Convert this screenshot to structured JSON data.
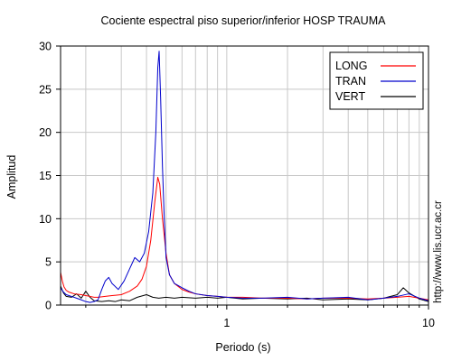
{
  "chart_data": {
    "type": "line",
    "title": "Cociente espectral piso superior/inferior  HOSP TRAUMA",
    "xlabel": "Periodo (s)",
    "ylabel": "Amplitud",
    "xscale": "log",
    "xlim": [
      0.15,
      10
    ],
    "ylim": [
      0,
      30
    ],
    "grid": true,
    "legend_position": "top-right",
    "x_ticks": [
      {
        "value": 1,
        "label": "1"
      },
      {
        "value": 10,
        "label": "10"
      }
    ],
    "y_ticks": [
      {
        "value": 0,
        "label": "0"
      },
      {
        "value": 5,
        "label": "5"
      },
      {
        "value": 10,
        "label": "10"
      },
      {
        "value": 15,
        "label": "15"
      },
      {
        "value": 20,
        "label": "20"
      },
      {
        "value": 25,
        "label": "25"
      },
      {
        "value": 30,
        "label": "30"
      }
    ],
    "series": [
      {
        "name": "LONG",
        "color": "#ff0000",
        "points": [
          [
            0.15,
            3.8
          ],
          [
            0.153,
            2.8
          ],
          [
            0.156,
            2.1
          ],
          [
            0.16,
            1.7
          ],
          [
            0.165,
            1.5
          ],
          [
            0.175,
            1.3
          ],
          [
            0.19,
            1.2
          ],
          [
            0.2,
            1.1
          ],
          [
            0.21,
            1.0
          ],
          [
            0.22,
            0.9
          ],
          [
            0.23,
            0.9
          ],
          [
            0.25,
            1.0
          ],
          [
            0.27,
            1.1
          ],
          [
            0.3,
            1.2
          ],
          [
            0.33,
            1.6
          ],
          [
            0.36,
            2.2
          ],
          [
            0.38,
            3.0
          ],
          [
            0.4,
            4.5
          ],
          [
            0.42,
            7.5
          ],
          [
            0.44,
            12.0
          ],
          [
            0.455,
            14.8
          ],
          [
            0.465,
            14.0
          ],
          [
            0.48,
            10.0
          ],
          [
            0.5,
            6.0
          ],
          [
            0.52,
            3.5
          ],
          [
            0.55,
            2.5
          ],
          [
            0.6,
            1.8
          ],
          [
            0.65,
            1.5
          ],
          [
            0.7,
            1.3
          ],
          [
            0.8,
            1.1
          ],
          [
            0.9,
            1.0
          ],
          [
            1.0,
            0.9
          ],
          [
            1.2,
            0.9
          ],
          [
            1.5,
            0.8
          ],
          [
            2.0,
            0.8
          ],
          [
            2.5,
            0.7
          ],
          [
            3.0,
            0.8
          ],
          [
            4.0,
            0.8
          ],
          [
            5.0,
            0.7
          ],
          [
            6.0,
            0.8
          ],
          [
            7.0,
            0.9
          ],
          [
            8.0,
            1.0
          ],
          [
            9.0,
            0.8
          ],
          [
            10.0,
            0.6
          ]
        ]
      },
      {
        "name": "TRAN",
        "color": "#0000cc",
        "points": [
          [
            0.15,
            2.0
          ],
          [
            0.155,
            1.5
          ],
          [
            0.16,
            1.2
          ],
          [
            0.17,
            1.0
          ],
          [
            0.18,
            0.8
          ],
          [
            0.19,
            0.6
          ],
          [
            0.2,
            0.4
          ],
          [
            0.21,
            0.3
          ],
          [
            0.22,
            0.4
          ],
          [
            0.23,
            0.6
          ],
          [
            0.24,
            1.8
          ],
          [
            0.25,
            2.8
          ],
          [
            0.26,
            3.2
          ],
          [
            0.27,
            2.5
          ],
          [
            0.29,
            1.8
          ],
          [
            0.31,
            2.8
          ],
          [
            0.33,
            4.2
          ],
          [
            0.35,
            5.5
          ],
          [
            0.37,
            5.0
          ],
          [
            0.39,
            6.0
          ],
          [
            0.41,
            8.5
          ],
          [
            0.43,
            13.0
          ],
          [
            0.445,
            20.0
          ],
          [
            0.455,
            27.5
          ],
          [
            0.462,
            29.4
          ],
          [
            0.47,
            24.0
          ],
          [
            0.48,
            16.0
          ],
          [
            0.49,
            10.0
          ],
          [
            0.5,
            5.5
          ],
          [
            0.52,
            3.5
          ],
          [
            0.55,
            2.5
          ],
          [
            0.6,
            2.0
          ],
          [
            0.65,
            1.6
          ],
          [
            0.7,
            1.3
          ],
          [
            0.8,
            1.1
          ],
          [
            0.9,
            1.0
          ],
          [
            1.0,
            0.9
          ],
          [
            1.2,
            0.8
          ],
          [
            1.5,
            0.8
          ],
          [
            2.0,
            0.9
          ],
          [
            2.5,
            0.7
          ],
          [
            3.0,
            0.8
          ],
          [
            4.0,
            0.9
          ],
          [
            5.0,
            0.6
          ],
          [
            6.0,
            0.8
          ],
          [
            7.0,
            1.0
          ],
          [
            8.0,
            1.3
          ],
          [
            9.0,
            0.8
          ],
          [
            10.0,
            0.5
          ]
        ]
      },
      {
        "name": "VERT",
        "color": "#000000",
        "points": [
          [
            0.15,
            2.2
          ],
          [
            0.155,
            1.4
          ],
          [
            0.16,
            1.0
          ],
          [
            0.17,
            0.9
          ],
          [
            0.18,
            1.3
          ],
          [
            0.19,
            0.8
          ],
          [
            0.2,
            1.6
          ],
          [
            0.21,
            0.9
          ],
          [
            0.22,
            0.5
          ],
          [
            0.24,
            0.4
          ],
          [
            0.26,
            0.5
          ],
          [
            0.28,
            0.4
          ],
          [
            0.3,
            0.6
          ],
          [
            0.33,
            0.5
          ],
          [
            0.36,
            0.9
          ],
          [
            0.4,
            1.2
          ],
          [
            0.43,
            0.9
          ],
          [
            0.46,
            0.8
          ],
          [
            0.5,
            0.9
          ],
          [
            0.55,
            0.8
          ],
          [
            0.6,
            0.9
          ],
          [
            0.7,
            0.8
          ],
          [
            0.8,
            0.9
          ],
          [
            0.9,
            0.8
          ],
          [
            1.0,
            0.9
          ],
          [
            1.2,
            0.7
          ],
          [
            1.5,
            0.8
          ],
          [
            2.0,
            0.7
          ],
          [
            2.5,
            0.8
          ],
          [
            3.0,
            0.6
          ],
          [
            4.0,
            0.7
          ],
          [
            5.0,
            0.6
          ],
          [
            6.0,
            0.8
          ],
          [
            7.0,
            1.2
          ],
          [
            7.5,
            2.0
          ],
          [
            8.0,
            1.4
          ],
          [
            9.0,
            0.7
          ],
          [
            10.0,
            0.4
          ]
        ]
      }
    ]
  },
  "side_note": "http://www.lis.ucr.ac.cr"
}
